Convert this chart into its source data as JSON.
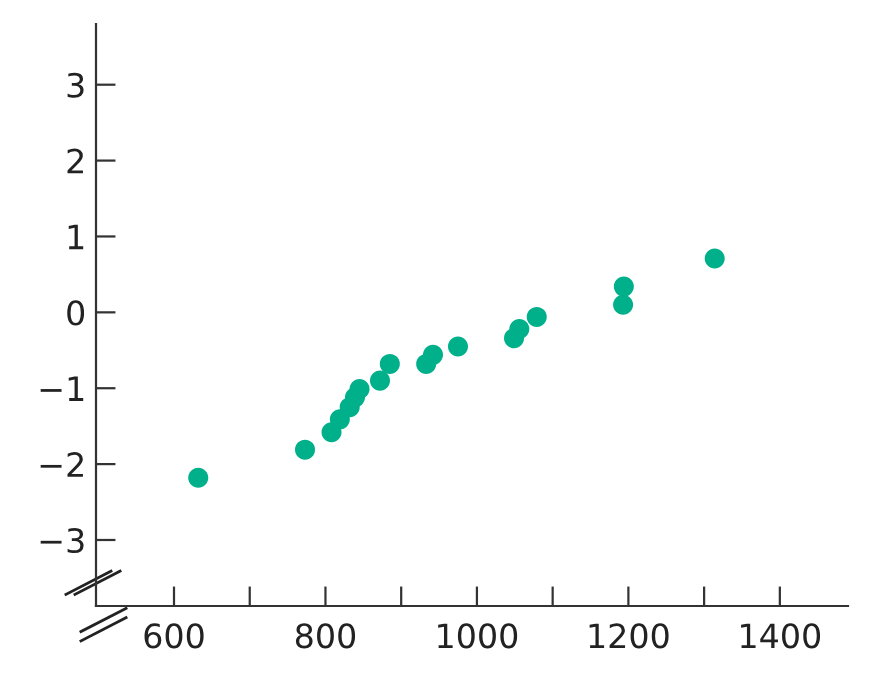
{
  "chart_data": {
    "type": "scatter",
    "marker": "circle",
    "grid": false,
    "x": [
      632,
      773,
      808,
      819,
      832,
      839,
      845,
      872,
      885,
      933,
      942,
      975,
      1049,
      1056,
      1079,
      1193,
      1194,
      1314
    ],
    "values": [
      -2.18,
      -1.81,
      -1.58,
      -1.41,
      -1.25,
      -1.12,
      -1.01,
      -0.9,
      -0.68,
      -0.68,
      -0.56,
      -0.45,
      -0.34,
      -0.22,
      -0.06,
      0.1,
      0.34,
      0.71
    ],
    "color": "#00b08a",
    "xlim": [
      497,
      1490
    ],
    "xticks": [
      600,
      {
        "value": 700,
        "label": null
      },
      800,
      {
        "value": 900,
        "label": null
      },
      1000,
      {
        "value": 1100,
        "label": null
      },
      1200,
      {
        "value": 1300,
        "label": null
      },
      1400
    ],
    "ylim": [
      -3.87,
      3.8
    ],
    "yticks": [
      {
        "value": -3,
        "label": "−3"
      },
      {
        "value": -2,
        "label": "−2"
      },
      {
        "value": -1,
        "label": "−1"
      },
      0,
      1,
      2,
      3
    ]
  }
}
